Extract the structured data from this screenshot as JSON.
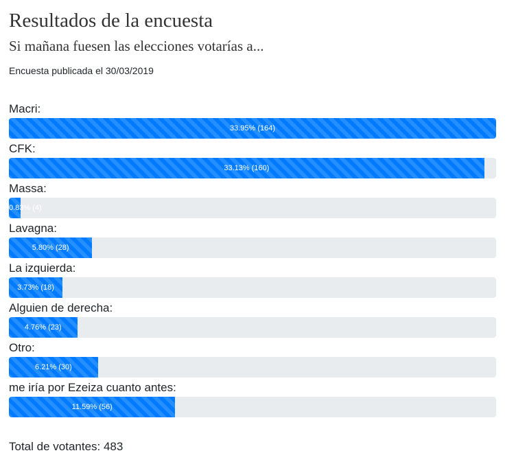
{
  "header": {
    "title": "Resultados de la encuesta",
    "question": "Si mañana fuesen las elecciones votarías a...",
    "published": "Encuesta publicada el 30/03/2019"
  },
  "colors": {
    "bar": "#007bff",
    "track": "#e9ecef",
    "text": "#212529"
  },
  "results": [
    {
      "label": "Macri:",
      "percent": 33.95,
      "bar_text": "33.95% (164)"
    },
    {
      "label": "CFK:",
      "percent": 33.13,
      "bar_text": "33.13% (160)"
    },
    {
      "label": "Massa:",
      "percent": 0.83,
      "bar_text": "0.83% (4)"
    },
    {
      "label": "Lavagna:",
      "percent": 5.8,
      "bar_text": "5.80% (28)"
    },
    {
      "label": "La izquierda:",
      "percent": 3.73,
      "bar_text": "3.73% (18)"
    },
    {
      "label": "Alguien de derecha:",
      "percent": 4.76,
      "bar_text": "4.76% (23)"
    },
    {
      "label": "Otro:",
      "percent": 6.21,
      "bar_text": "6.21% (30)"
    },
    {
      "label": "me iría por Ezeiza cuanto antes:",
      "percent": 11.59,
      "bar_text": "11.59% (56)"
    }
  ],
  "scale_max_percent": 33.95,
  "total": {
    "text": "Total de votantes: 483"
  }
}
